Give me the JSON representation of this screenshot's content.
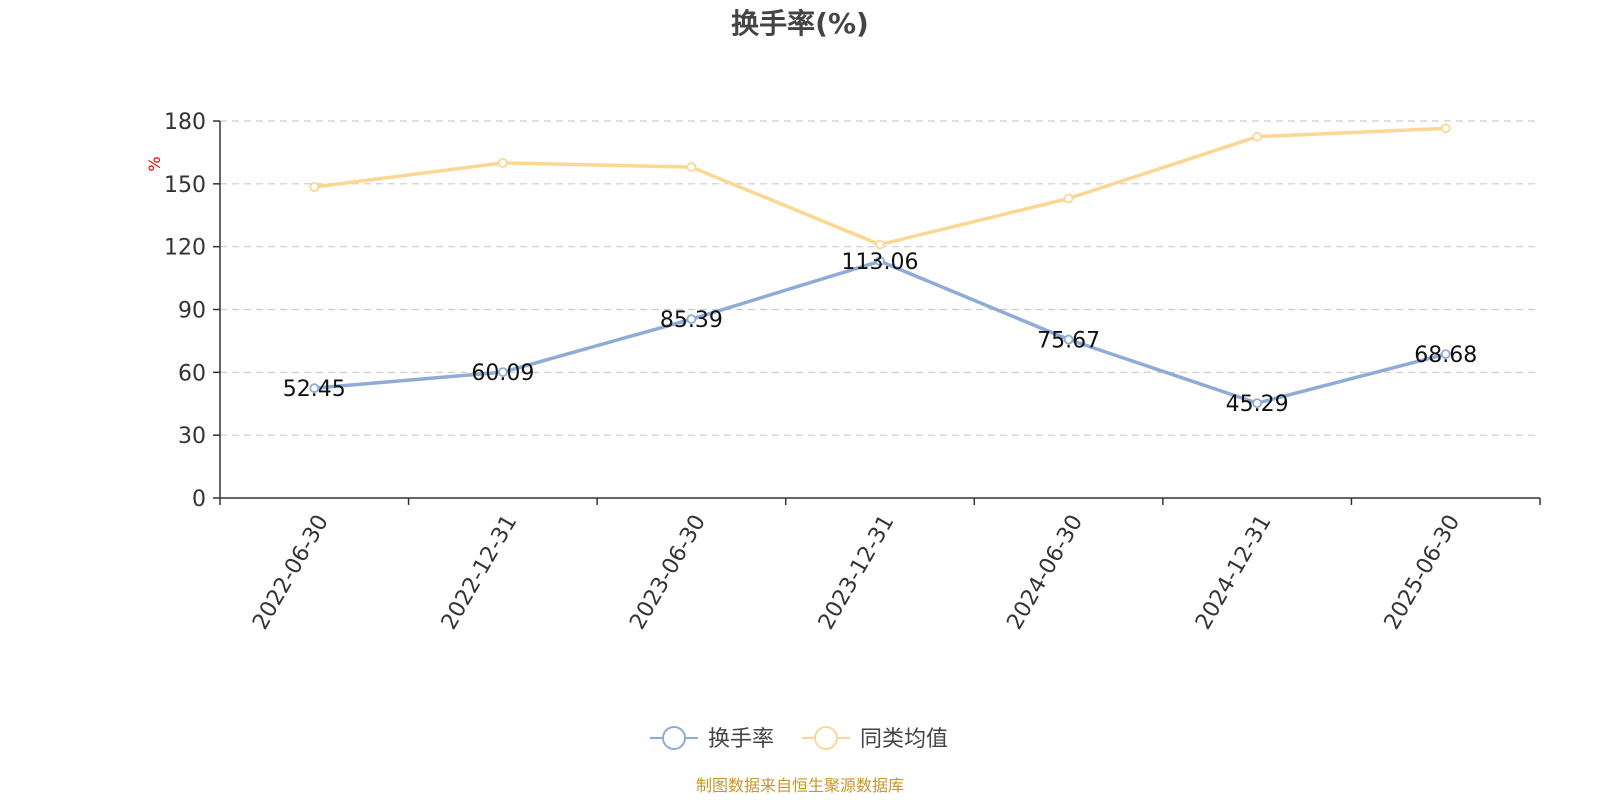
{
  "chart_data": {
    "type": "line",
    "title": "换手率(%)",
    "ylabel": "%",
    "xlabel": "",
    "categories": [
      "2022-06-30",
      "2022-12-31",
      "2023-06-30",
      "2023-12-31",
      "2024-06-30",
      "2024-12-31",
      "2025-06-30"
    ],
    "ylim": [
      0,
      180
    ],
    "yticks": [
      0,
      30,
      60,
      90,
      120,
      150,
      180
    ],
    "grid": true,
    "legend_position": "bottom",
    "series": [
      {
        "name": "换手率",
        "color": "#8eacd6",
        "values": [
          52.45,
          60.09,
          85.39,
          113.06,
          75.67,
          45.29,
          68.68
        ],
        "data_labels": [
          "52.45",
          "60.09",
          "85.39",
          "113.06",
          "75.67",
          "45.29",
          "68.68"
        ]
      },
      {
        "name": "同类均值",
        "color": "#fbd794",
        "values": [
          148.5,
          160,
          158,
          121,
          143,
          172.5,
          176.5
        ]
      }
    ]
  },
  "source_text": "制图数据来自恒生聚源数据库"
}
